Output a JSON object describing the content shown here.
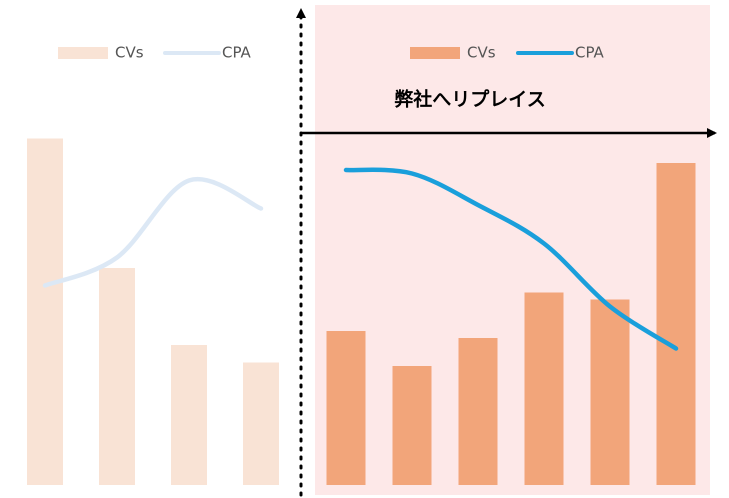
{
  "annotation": "弊社へリプレイス",
  "chart_data": [
    {
      "type": "bar",
      "categories": [
        null,
        null,
        null,
        null
      ],
      "ylim": [
        0,
        100
      ],
      "series": [
        {
          "name": "CVs",
          "type": "bar",
          "color": "#f9e3d5",
          "values": [
            99,
            62,
            40,
            35
          ]
        },
        {
          "name": "CPA",
          "type": "line",
          "color": "#dce8f5",
          "values": [
            57,
            65,
            87,
            79
          ]
        }
      ]
    },
    {
      "type": "bar",
      "categories": [
        null,
        null,
        null,
        null,
        null,
        null
      ],
      "ylim": [
        0,
        100
      ],
      "background": "#fde8e8",
      "series": [
        {
          "name": "CVs",
          "type": "bar",
          "color": "#f2a57a",
          "values": [
            44,
            34,
            42,
            55,
            53,
            92
          ]
        },
        {
          "name": "CPA",
          "type": "line",
          "color": "#1a9fdb",
          "values": [
            90,
            89,
            80,
            69,
            51,
            39
          ]
        }
      ]
    }
  ]
}
